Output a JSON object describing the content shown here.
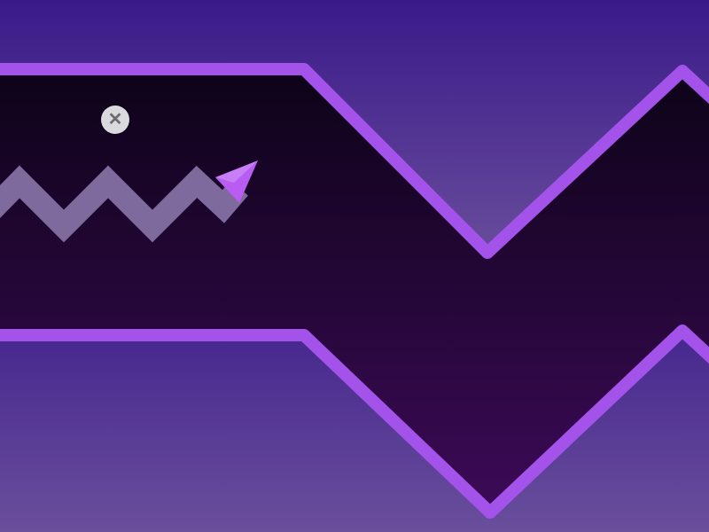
{
  "game": {
    "mode": "wave",
    "close_button": {
      "icon": "close-icon",
      "glyph": "✕"
    },
    "colors": {
      "sky_top": "#3a1a8a",
      "sky_bottom": "#6a4f9c",
      "corridor_top": "#0d0318",
      "corridor_bottom": "#3d0a58",
      "wall_outline": "#a352ea",
      "trail": "#8a76a8",
      "wave_icon": "#b85cf2",
      "close_button_bg": "#d9d9de",
      "close_button_glyph": "#6b6b70"
    }
  }
}
